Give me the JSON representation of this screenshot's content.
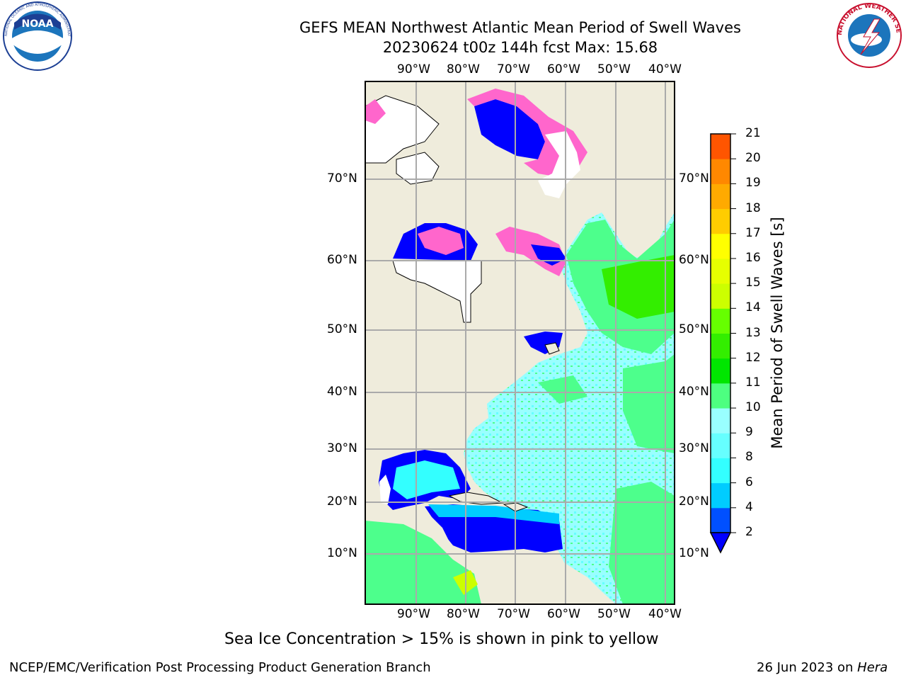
{
  "header": {
    "title_line1": "GEFS MEAN Northwest Atlantic Mean Period of Swell Waves",
    "title_line2": "20230624 t00z 144h fcst   Max: 15.68"
  },
  "logos": {
    "left": {
      "name": "NOAA",
      "ring_text": "NATIONAL OCEANIC AND ATMOSPHERIC ADMINISTRATION",
      "bottom_text": "U.S. DEPARTMENT OF COMMERCE"
    },
    "right": {
      "ring_text": "NATIONAL WEATHER SERVICE"
    }
  },
  "map": {
    "lon_labels": [
      "90°W",
      "80°W",
      "70°W",
      "60°W",
      "50°W",
      "40°W"
    ],
    "lat_labels": [
      "70°N",
      "60°N",
      "50°N",
      "40°N",
      "30°N",
      "20°N",
      "10°N"
    ],
    "colors": {
      "land": "#efecdc",
      "ocean_main": "#99ffff",
      "ocean_swell": "#4dff8c",
      "gulf": "#0000ff",
      "ice": "#ff66cc",
      "grid": "#aaaaaa"
    }
  },
  "colorbar": {
    "label": "Mean Period of Swell Waves [s]",
    "ticks": [
      "2",
      "4",
      "6",
      "8",
      "9",
      "10",
      "11",
      "12",
      "13",
      "14",
      "15",
      "16",
      "17",
      "18",
      "19",
      "20",
      "21"
    ],
    "colors": [
      "#0050ff",
      "#00ccff",
      "#33ffff",
      "#66ffff",
      "#99ffff",
      "#4dff80",
      "#00e600",
      "#33ee00",
      "#66ff00",
      "#ccff00",
      "#e6ff00",
      "#ffff00",
      "#ffcc00",
      "#ffaa00",
      "#ff8800",
      "#ff5500",
      "#ff2200",
      "#ff0000"
    ],
    "under_color": "#0000ff"
  },
  "notes": {
    "ice_note": "Sea Ice Concentration > 15% is shown in pink to yellow"
  },
  "footer": {
    "left": "NCEP/EMC/Verification Post Processing Product Generation Branch",
    "date": "26 Jun 2023 on ",
    "host": "Hera"
  }
}
